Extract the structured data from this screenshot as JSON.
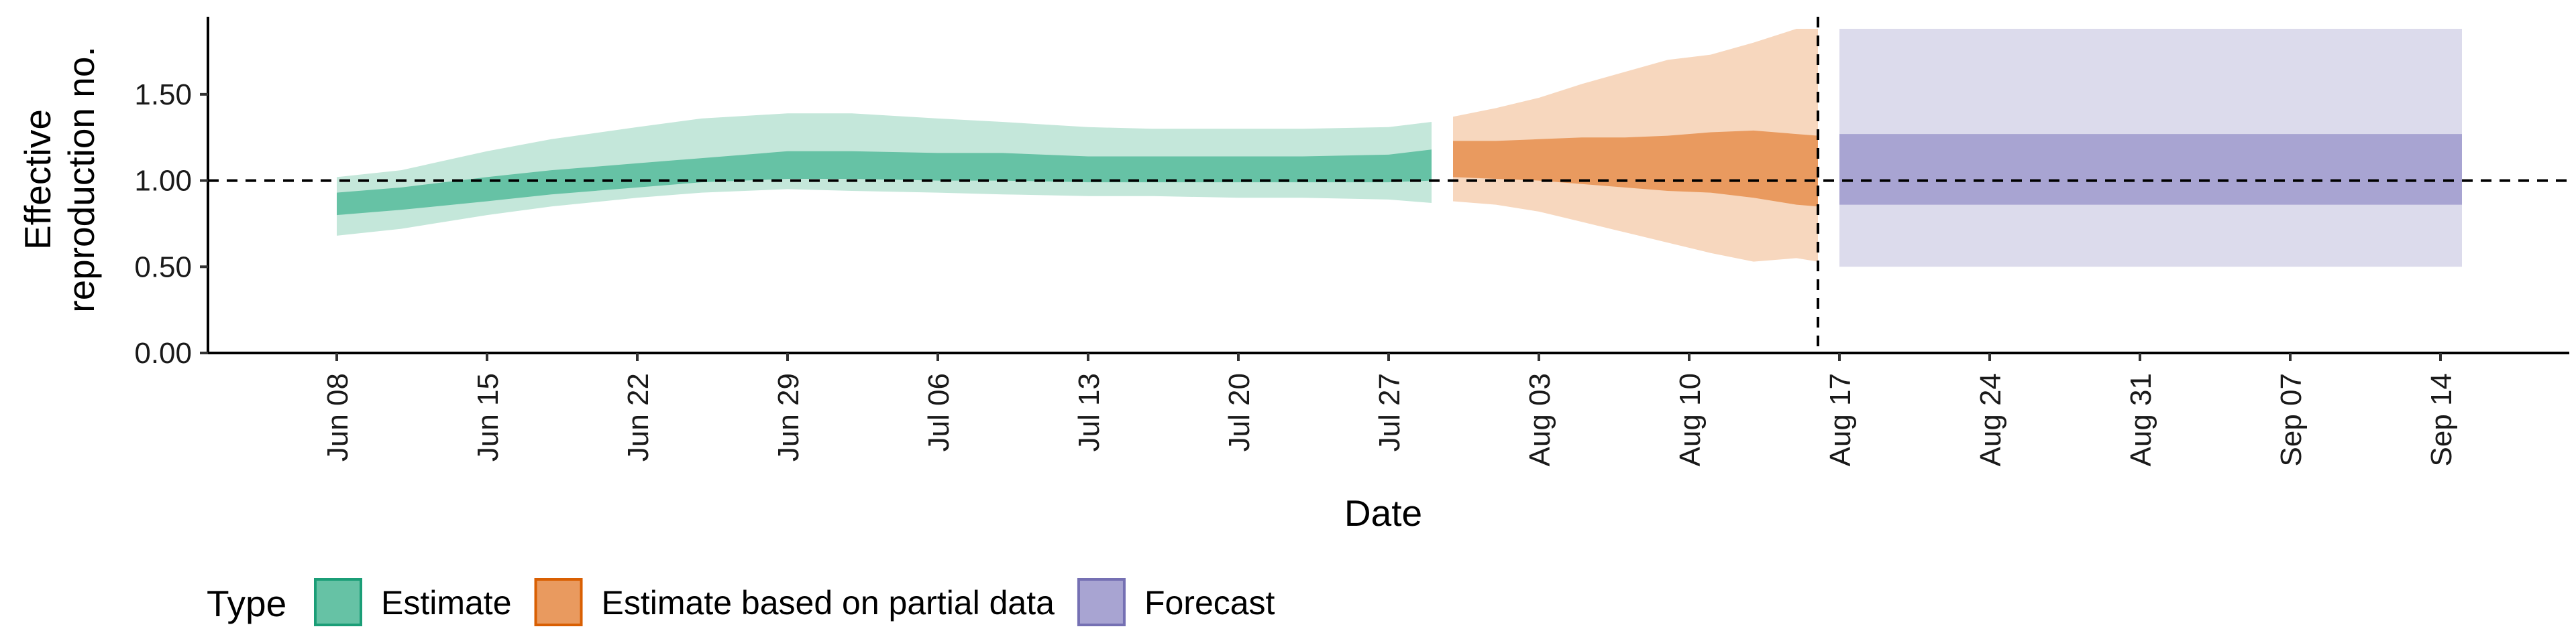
{
  "chart_data": {
    "type": "area",
    "xlabel": "Date",
    "ylabel_lines": [
      "Effective",
      "reproduction no."
    ],
    "ylim": [
      0,
      1.95
    ],
    "xlim": [
      "2020-06-02",
      "2020-09-20"
    ],
    "y_ticks": [
      {
        "value": 0.0,
        "label": "0.00"
      },
      {
        "value": 0.5,
        "label": "0.50"
      },
      {
        "value": 1.0,
        "label": "1.00"
      },
      {
        "value": 1.5,
        "label": "1.50"
      }
    ],
    "x_ticks": [
      {
        "date": "2020-06-08",
        "label": "Jun 08"
      },
      {
        "date": "2020-06-15",
        "label": "Jun 15"
      },
      {
        "date": "2020-06-22",
        "label": "Jun 22"
      },
      {
        "date": "2020-06-29",
        "label": "Jun 29"
      },
      {
        "date": "2020-07-06",
        "label": "Jul 06"
      },
      {
        "date": "2020-07-13",
        "label": "Jul 13"
      },
      {
        "date": "2020-07-20",
        "label": "Jul 20"
      },
      {
        "date": "2020-07-27",
        "label": "Jul 27"
      },
      {
        "date": "2020-08-03",
        "label": "Aug 03"
      },
      {
        "date": "2020-08-10",
        "label": "Aug 10"
      },
      {
        "date": "2020-08-17",
        "label": "Aug 17"
      },
      {
        "date": "2020-08-24",
        "label": "Aug 24"
      },
      {
        "date": "2020-08-31",
        "label": "Aug 31"
      },
      {
        "date": "2020-09-07",
        "label": "Sep 07"
      },
      {
        "date": "2020-09-14",
        "label": "Sep 14"
      }
    ],
    "reference_line_y": 1.0,
    "forecast_start": "2020-08-16",
    "series": [
      {
        "name": "Estimate",
        "color": "#1b9e77",
        "outer_color": "#c4e7da",
        "inner_color": "#66c2a5",
        "x": [
          "2020-06-08",
          "2020-06-11",
          "2020-06-15",
          "2020-06-18",
          "2020-06-22",
          "2020-06-25",
          "2020-06-29",
          "2020-07-02",
          "2020-07-06",
          "2020-07-09",
          "2020-07-13",
          "2020-07-16",
          "2020-07-20",
          "2020-07-23",
          "2020-07-27",
          "2020-07-29"
        ],
        "outer_lower": [
          0.68,
          0.72,
          0.8,
          0.85,
          0.9,
          0.93,
          0.95,
          0.94,
          0.93,
          0.92,
          0.91,
          0.91,
          0.9,
          0.9,
          0.89,
          0.87
        ],
        "inner_lower": [
          0.8,
          0.83,
          0.88,
          0.92,
          0.96,
          0.99,
          1.01,
          1.01,
          1.0,
          1.0,
          0.99,
          0.99,
          0.99,
          0.99,
          0.99,
          1.0
        ],
        "inner_upper": [
          0.93,
          0.96,
          1.02,
          1.06,
          1.1,
          1.13,
          1.17,
          1.17,
          1.16,
          1.16,
          1.14,
          1.14,
          1.14,
          1.14,
          1.15,
          1.18
        ],
        "outer_upper": [
          1.02,
          1.06,
          1.17,
          1.24,
          1.31,
          1.36,
          1.39,
          1.39,
          1.36,
          1.34,
          1.31,
          1.3,
          1.3,
          1.3,
          1.31,
          1.34
        ]
      },
      {
        "name": "Estimate based on partial data",
        "color": "#d95f02",
        "outer_color": "#f7d7be",
        "inner_color": "#e99a5f",
        "x": [
          "2020-07-30",
          "2020-08-01",
          "2020-08-03",
          "2020-08-05",
          "2020-08-07",
          "2020-08-09",
          "2020-08-11",
          "2020-08-13",
          "2020-08-15",
          "2020-08-16"
        ],
        "outer_lower": [
          0.88,
          0.86,
          0.82,
          0.76,
          0.7,
          0.64,
          0.58,
          0.53,
          0.55,
          0.53
        ],
        "inner_lower": [
          1.02,
          1.01,
          1.0,
          0.98,
          0.96,
          0.94,
          0.93,
          0.9,
          0.86,
          0.85
        ],
        "inner_upper": [
          1.23,
          1.23,
          1.24,
          1.25,
          1.25,
          1.26,
          1.28,
          1.29,
          1.27,
          1.26
        ],
        "outer_upper": [
          1.37,
          1.42,
          1.48,
          1.56,
          1.63,
          1.7,
          1.73,
          1.8,
          1.88,
          1.88
        ]
      },
      {
        "name": "Forecast",
        "color": "#7570b3",
        "outer_color": "#dcdbec",
        "inner_color": "#a8a4d2",
        "x": [
          "2020-08-17",
          "2020-09-15"
        ],
        "outer_lower": [
          0.5,
          0.5
        ],
        "inner_lower": [
          0.86,
          0.86
        ],
        "inner_upper": [
          1.27,
          1.27
        ],
        "outer_upper": [
          1.88,
          1.88
        ]
      }
    ],
    "legend": {
      "title": "Type",
      "placement": "bottom-left"
    }
  }
}
